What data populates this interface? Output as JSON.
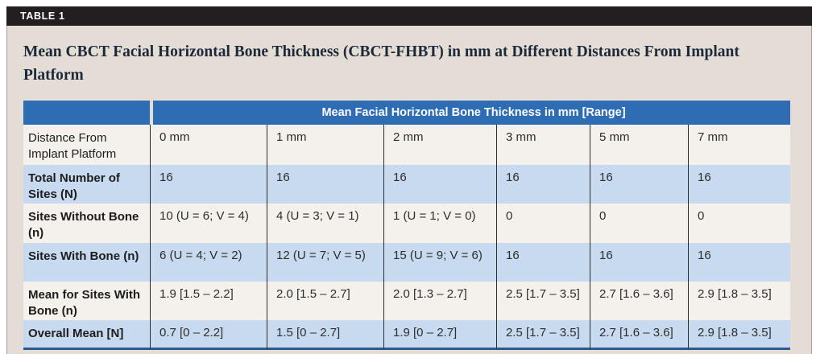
{
  "figure": {
    "label": "TABLE 1",
    "title": "Mean CBCT Facial Horizontal Bone Thickness (CBCT-FHBT) in mm at Different Distances From Implant Platform"
  },
  "table": {
    "merged_header": "Mean Facial Horizontal Bone Thickness in mm [Range]",
    "row_header": "Distance From Implant Platform",
    "columns": [
      "0 mm",
      "1 mm",
      "2 mm",
      "3 mm",
      "5 mm",
      "7 mm"
    ],
    "rows": [
      {
        "label": "Total Number of Sites (N)",
        "values": [
          "16",
          "16",
          "16",
          "16",
          "16",
          "16"
        ]
      },
      {
        "label": "Sites Without Bone (n)",
        "values": [
          "10 (U = 6; V = 4)",
          "4 (U = 3; V = 1)",
          "1 (U = 1; V = 0)",
          "0",
          "0",
          "0"
        ]
      },
      {
        "label": "Sites With Bone (n)",
        "values": [
          "6 (U = 4; V = 2)",
          "12 (U = 7; V = 5)",
          "15 (U = 9; V = 6)",
          "16",
          "16",
          "16"
        ]
      },
      {
        "label": "Mean for Sites With Bone (n)",
        "values": [
          "1.9 [1.5 – 2.2]",
          "2.0 [1.5 – 2.7]",
          "2.0 [1.3 – 2.7]",
          "2.5 [1.7 – 3.5]",
          "2.7 [1.6 – 3.6]",
          "2.9 [1.8 – 3.5]"
        ]
      },
      {
        "label": "Overall Mean [N]",
        "values": [
          "0.7 [0 – 2.2]",
          "1.5 [0 – 2.7]",
          "1.9 [0 – 2.7]",
          "2.5 [1.7 – 3.5]",
          "2.7 [1.6 – 3.6]",
          "2.9 [1.8 – 3.5]"
        ]
      }
    ]
  },
  "colors": {
    "bar_bg": "#231f20",
    "panel_bg": "#e3ddd6",
    "header_blue": "#2e6cb4",
    "row_blue": "#c8daef",
    "row_white": "#f4f1ec",
    "title_color": "#1d2838",
    "bottom_border": "#2b5a92"
  }
}
